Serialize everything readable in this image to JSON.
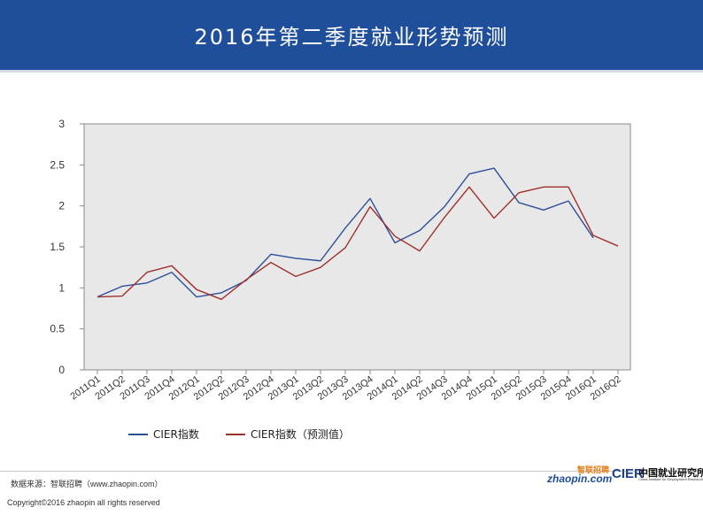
{
  "header": {
    "title": "2016年第二季度就业形势预测"
  },
  "chart_data": {
    "type": "line",
    "title": "",
    "xlabel": "",
    "ylabel": "",
    "categories": [
      "2011Q1",
      "2011Q2",
      "2011Q3",
      "2011Q4",
      "2012Q1",
      "2012Q2",
      "2012Q3",
      "2012Q4",
      "2013Q1",
      "2013Q2",
      "2013Q3",
      "2013Q4",
      "2014Q1",
      "2014Q2",
      "2014Q3",
      "2014Q4",
      "2015Q1",
      "2015Q2",
      "2015Q3",
      "2015Q4",
      "2016Q1",
      "2016Q2"
    ],
    "ylim": [
      0,
      3
    ],
    "yticks": [
      "0",
      "0.5",
      "1",
      "1.5",
      "2",
      "2.5",
      "3"
    ],
    "grid": false,
    "legend_position": "bottom-left",
    "series": [
      {
        "name": "CIER指数",
        "color": "#2d4f9a",
        "values": [
          0.89,
          1.02,
          1.06,
          1.19,
          0.89,
          0.94,
          1.09,
          1.41,
          1.36,
          1.33,
          1.73,
          2.09,
          1.55,
          1.7,
          1.99,
          2.39,
          2.46,
          2.04,
          1.95,
          2.06,
          1.61,
          null
        ]
      },
      {
        "name": "CIER指数（预测值）",
        "color": "#a0302c",
        "values": [
          0.89,
          0.9,
          1.19,
          1.27,
          0.98,
          0.86,
          1.1,
          1.31,
          1.14,
          1.25,
          1.49,
          1.99,
          1.63,
          1.45,
          1.86,
          2.23,
          1.85,
          2.16,
          2.23,
          2.23,
          1.64,
          1.51
        ]
      }
    ]
  },
  "colors": {
    "header_bg": "#1f4e9a",
    "plot_bg": "#e8e8e8"
  },
  "footer": {
    "source": "数据来源：智联招聘（www.zhaopin.com）",
    "copyright": "Copyright©2016 zhaopin all rights reserved",
    "logo_zhaopin_cn": "智联招聘",
    "logo_zhaopin_en": "zhaopin.com",
    "logo_cier_mark": "CIER",
    "logo_cier_cn": "中国就业研究所",
    "logo_cier_en": "China Institute for Employment Research"
  }
}
